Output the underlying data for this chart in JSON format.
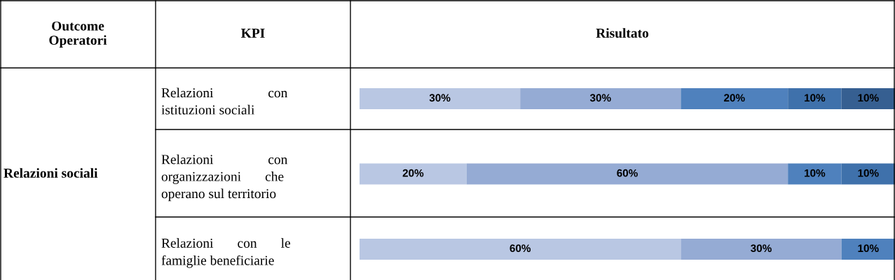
{
  "chart_data": {
    "type": "bar",
    "orientation": "horizontal",
    "stacked": true,
    "tick_labels": "y",
    "categories": [
      "Relazioni                con\nistituzioni sociali",
      "Relazioni                con\norganizzazioni       che\noperano sul territorio",
      "Relazioni       con       le\nfamiglie beneficiarie"
    ],
    "series": [
      {
        "color": "#b9c7e3",
        "values": [
          30,
          20,
          60
        ],
        "value_labels": [
          "30%",
          "20%",
          "60%"
        ]
      },
      {
        "color": "#95abd4",
        "values": [
          30,
          60,
          30
        ],
        "value_labels": [
          "30%",
          "60%",
          "30%"
        ]
      },
      {
        "color": "#4f81bd",
        "values": [
          20,
          10,
          10
        ],
        "value_labels": [
          "20%",
          "10%",
          "10%"
        ]
      },
      {
        "color": "#3f71ab",
        "values": [
          10,
          10,
          null
        ],
        "value_labels": [
          "10%",
          "10%",
          null
        ]
      },
      {
        "color": "#365f91",
        "values": [
          10,
          null,
          null
        ],
        "value_labels": [
          "10%",
          null,
          null
        ]
      }
    ],
    "annotations": [
      "Outcome\nOperatori",
      "KPI",
      "Risultato",
      "Relazioni sociali"
    ]
  }
}
